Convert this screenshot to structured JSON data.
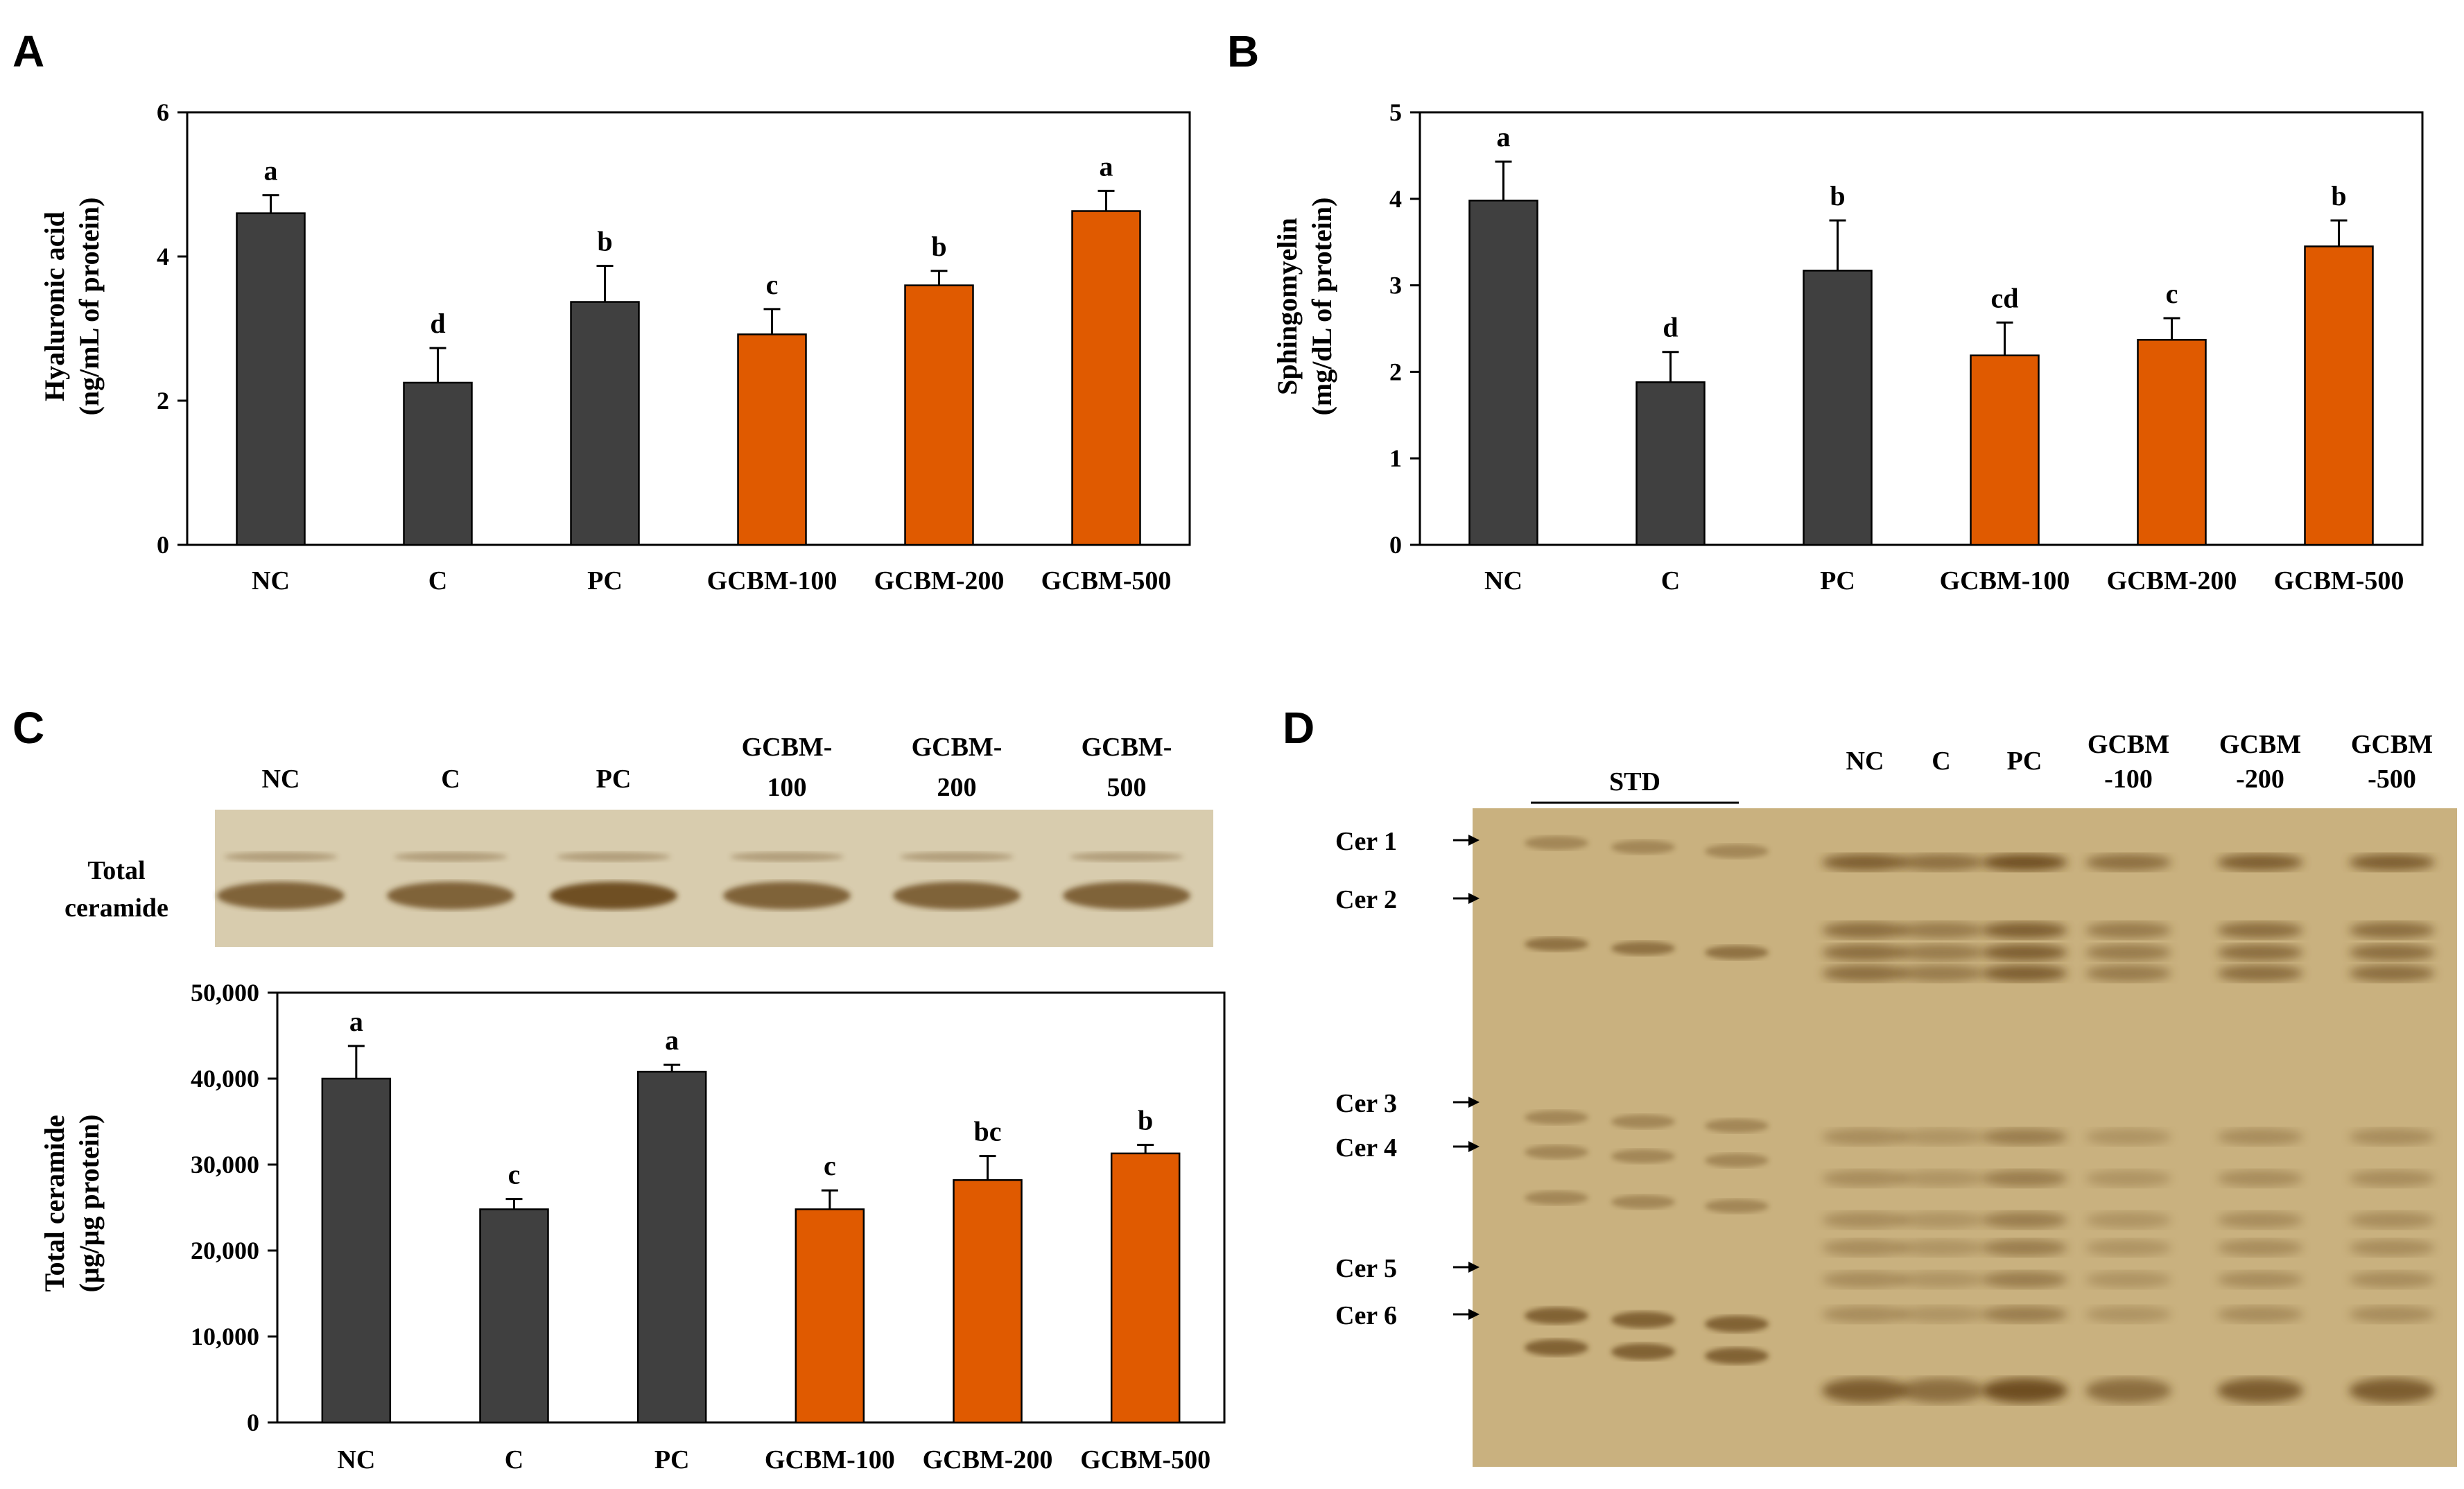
{
  "colors": {
    "dark_bar": "#404040",
    "orange_bar": "#E05A00",
    "gel_bg": "#CDB888",
    "blot_bg": "#D6C8A8",
    "band": "#6B4A1E"
  },
  "panels": {
    "A": {
      "letter": "A",
      "ylabel_line1": "Hyaluronic acid",
      "ylabel_line2": "(ng/mL of protein)"
    },
    "B": {
      "letter": "B",
      "ylabel_line1": "Sphingomyelin",
      "ylabel_line2": "(mg/dL of protein)"
    },
    "C": {
      "letter": "C",
      "ylabel_line1": "Total ceramide",
      "ylabel_line2": "(μg/μg protein)",
      "blot_row_label_1": "Total",
      "blot_row_label_2": "ceramide",
      "blot_lanes": [
        [
          "NC",
          ""
        ],
        [
          "C",
          ""
        ],
        [
          "PC",
          ""
        ],
        [
          "GCBM-",
          "100"
        ],
        [
          "GCBM-",
          "200"
        ],
        [
          "GCBM-",
          "500"
        ]
      ]
    },
    "D": {
      "letter": "D",
      "std_label": "STD",
      "lanes": [
        [
          "NC",
          ""
        ],
        [
          "C",
          ""
        ],
        [
          "PC",
          ""
        ],
        [
          "GCBM",
          "-100"
        ],
        [
          "GCBM",
          "-200"
        ],
        [
          "GCBM",
          "-500"
        ]
      ],
      "markers": [
        "Cer 1",
        "Cer 2",
        "Cer 3",
        "Cer 4",
        "Cer 5",
        "Cer 6"
      ]
    }
  },
  "chart_data": [
    {
      "id": "A",
      "type": "bar",
      "title": "",
      "xlabel": "",
      "ylabel": "Hyaluronic acid (ng/mL of protein)",
      "categories": [
        "NC",
        "C",
        "PC",
        "GCBM-100",
        "GCBM-200",
        "GCBM-500"
      ],
      "values": [
        4.6,
        2.25,
        3.37,
        2.92,
        3.6,
        4.63
      ],
      "errors": [
        0.25,
        0.48,
        0.5,
        0.35,
        0.2,
        0.28
      ],
      "letters": [
        "a",
        "d",
        "b",
        "c",
        "b",
        "a"
      ],
      "ylim": [
        0,
        6
      ],
      "yticks": [
        "0",
        "2",
        "4",
        "6"
      ],
      "ytick_values": [
        0,
        2,
        4,
        6
      ]
    },
    {
      "id": "B",
      "type": "bar",
      "title": "",
      "xlabel": "",
      "ylabel": "Sphingomyelin (mg/dL of protein)",
      "categories": [
        "NC",
        "C",
        "PC",
        "GCBM-100",
        "GCBM-200",
        "GCBM-500"
      ],
      "values": [
        3.98,
        1.88,
        3.17,
        2.19,
        2.37,
        3.45
      ],
      "errors": [
        0.45,
        0.35,
        0.58,
        0.38,
        0.25,
        0.3
      ],
      "letters": [
        "a",
        "d",
        "b",
        "cd",
        "c",
        "b"
      ],
      "ylim": [
        0,
        5
      ],
      "yticks": [
        "0",
        "1",
        "2",
        "3",
        "4",
        "5"
      ],
      "ytick_values": [
        0,
        1,
        2,
        3,
        4,
        5
      ]
    },
    {
      "id": "C",
      "type": "bar",
      "title": "",
      "xlabel": "",
      "ylabel": "Total ceramide (μg/μg protein)",
      "categories": [
        "NC",
        "C",
        "PC",
        "GCBM-100",
        "GCBM-200",
        "GCBM-500"
      ],
      "values": [
        40000,
        24800,
        40800,
        24800,
        28200,
        31300
      ],
      "errors": [
        3800,
        1200,
        800,
        2200,
        2800,
        1000
      ],
      "letters": [
        "a",
        "c",
        "a",
        "c",
        "bc",
        "b"
      ],
      "ylim": [
        0,
        50000
      ],
      "yticks": [
        "0",
        "10,000",
        "20,000",
        "30,000",
        "40,000",
        "50,000"
      ],
      "ytick_values": [
        0,
        10000,
        20000,
        30000,
        40000,
        50000
      ]
    }
  ]
}
